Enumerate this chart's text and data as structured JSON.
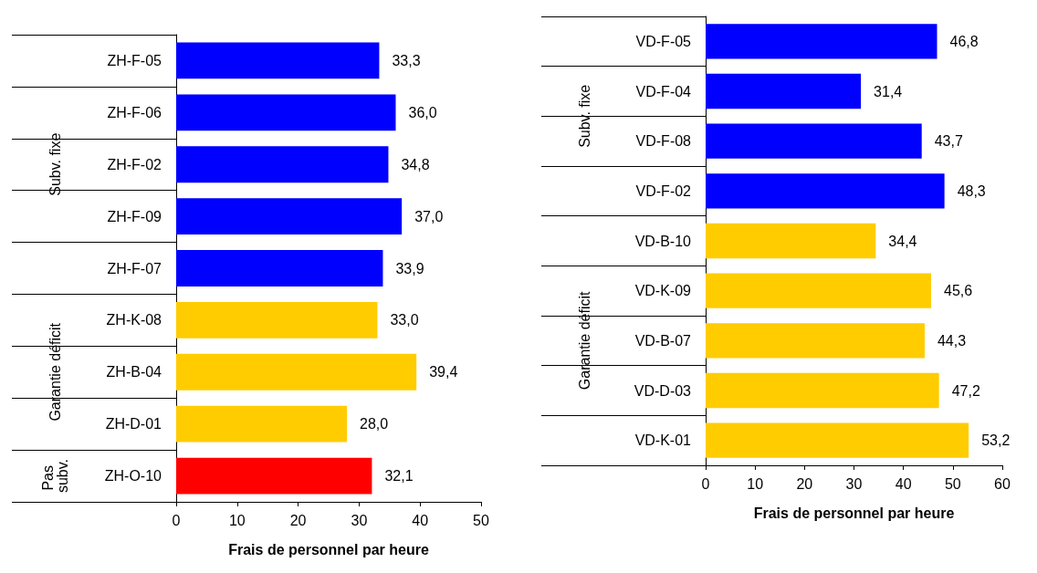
{
  "chart_data": [
    {
      "type": "bar",
      "orientation": "horizontal",
      "xlabel": "Frais de personnel par heure",
      "annotations": [
        "Subv. fixe",
        "Garantie déficit",
        "Pas subv."
      ],
      "categories": [
        "ZH-F-05",
        "ZH-F-06",
        "ZH-F-02",
        "ZH-F-09",
        "ZH-F-07",
        "ZH-K-08",
        "ZH-B-04",
        "ZH-D-01",
        "ZH-O-10"
      ],
      "xlim": [
        0,
        50
      ],
      "xticks": [
        0,
        10,
        20,
        30,
        40,
        50
      ],
      "series": [
        {
          "color": "#0000ff",
          "values": [
            33.3,
            36.0,
            34.8,
            37.0,
            33.9,
            null,
            null,
            null,
            null
          ],
          "value_labels": [
            "33,3",
            "36,0",
            "34,8",
            "37,0",
            "33,9",
            null,
            null,
            null,
            null
          ]
        },
        {
          "color": "#ffcc00",
          "values": [
            null,
            null,
            null,
            null,
            null,
            33.0,
            39.4,
            28.0,
            null
          ],
          "value_labels": [
            null,
            null,
            null,
            null,
            null,
            "33,0",
            "39,4",
            "28,0",
            null
          ]
        },
        {
          "color": "#ff0000",
          "values": [
            null,
            null,
            null,
            null,
            null,
            null,
            null,
            null,
            32.1
          ],
          "value_labels": [
            null,
            null,
            null,
            null,
            null,
            null,
            null,
            null,
            "32,1"
          ]
        }
      ]
    },
    {
      "type": "bar",
      "orientation": "horizontal",
      "xlabel": "Frais de personnel par heure",
      "annotations": [
        "Subv. fixe",
        "Garantie déficit"
      ],
      "categories": [
        "VD-F-05",
        "VD-F-04",
        "VD-F-08",
        "VD-F-02",
        "VD-B-10",
        "VD-K-09",
        "VD-B-07",
        "VD-D-03",
        "VD-K-01"
      ],
      "xlim": [
        0,
        60
      ],
      "xticks": [
        0,
        10,
        20,
        30,
        40,
        50,
        60
      ],
      "series": [
        {
          "color": "#0000ff",
          "values": [
            46.8,
            31.4,
            43.7,
            48.3,
            null,
            null,
            null,
            null,
            null
          ],
          "value_labels": [
            "46,8",
            "31,4",
            "43,7",
            "48,3",
            null,
            null,
            null,
            null,
            null
          ]
        },
        {
          "color": "#ffcc00",
          "values": [
            null,
            null,
            null,
            null,
            34.4,
            45.6,
            44.3,
            47.2,
            53.2
          ],
          "value_labels": [
            null,
            null,
            null,
            null,
            "34,4",
            "45,6",
            "44,3",
            "47,2",
            "53,2"
          ]
        }
      ]
    }
  ]
}
